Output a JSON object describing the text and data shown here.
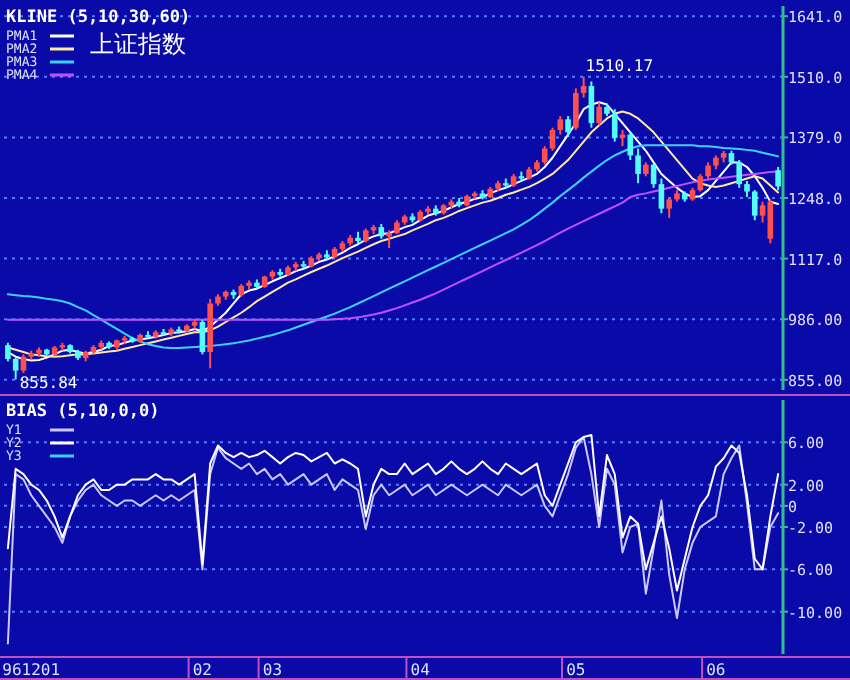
{
  "chart_data": [
    {
      "type": "candlestick",
      "title": "KLINE (5,10,30,60)",
      "subtitle": "上证指数",
      "categories": [
        null,
        null,
        null,
        "961201",
        null,
        null,
        null,
        null,
        null,
        null,
        null,
        null,
        null,
        null,
        null,
        null,
        null,
        null,
        null,
        null,
        null,
        null,
        null,
        null,
        null,
        "02",
        null,
        null,
        null,
        null,
        null,
        null,
        null,
        null,
        "03",
        null,
        null,
        null,
        null,
        null,
        null,
        null,
        null,
        null,
        null,
        null,
        null,
        null,
        null,
        null,
        null,
        null,
        null,
        "04",
        null,
        null,
        null,
        null,
        null,
        null,
        null,
        null,
        null,
        null,
        null,
        null,
        null,
        null,
        null,
        null,
        null,
        null,
        null,
        "05",
        null,
        null,
        null,
        null,
        null,
        null,
        null,
        null,
        null,
        null,
        null,
        null,
        null,
        null,
        null,
        null,
        null,
        "06",
        null,
        null,
        null,
        null,
        null,
        null,
        null,
        null
      ],
      "ohlc": [
        [
          930,
          935,
          895,
          900
        ],
        [
          900,
          903,
          855.84,
          875
        ],
        [
          875,
          910,
          870,
          905
        ],
        [
          905,
          918,
          900,
          912
        ],
        [
          912,
          925,
          905,
          920
        ],
        [
          920,
          922,
          908,
          910
        ],
        [
          910,
          928,
          906,
          925
        ],
        [
          925,
          935,
          918,
          930
        ],
        [
          930,
          932,
          912,
          915
        ],
        [
          915,
          920,
          898,
          902
        ],
        [
          902,
          918,
          895,
          915
        ],
        [
          915,
          930,
          910,
          926
        ],
        [
          926,
          940,
          920,
          935
        ],
        [
          935,
          938,
          922,
          925
        ],
        [
          925,
          942,
          920,
          940
        ],
        [
          940,
          950,
          932,
          945
        ],
        [
          945,
          948,
          935,
          938
        ],
        [
          938,
          955,
          935,
          952
        ],
        [
          952,
          960,
          945,
          948
        ],
        [
          948,
          962,
          944,
          958
        ],
        [
          958,
          965,
          950,
          955
        ],
        [
          955,
          968,
          950,
          964
        ],
        [
          964,
          970,
          955,
          960
        ],
        [
          960,
          975,
          958,
          972
        ],
        [
          972,
          985,
          965,
          980
        ],
        [
          980,
          984,
          910,
          915
        ],
        [
          915,
          1030,
          880,
          1020
        ],
        [
          1020,
          1040,
          1015,
          1035
        ],
        [
          1035,
          1048,
          1028,
          1045
        ],
        [
          1045,
          1050,
          1030,
          1038
        ],
        [
          1038,
          1062,
          1035,
          1058
        ],
        [
          1058,
          1070,
          1050,
          1065
        ],
        [
          1065,
          1072,
          1052,
          1056
        ],
        [
          1056,
          1080,
          1054,
          1078
        ],
        [
          1078,
          1092,
          1072,
          1088
        ],
        [
          1088,
          1095,
          1078,
          1082
        ],
        [
          1082,
          1102,
          1080,
          1098
        ],
        [
          1098,
          1110,
          1090,
          1105
        ],
        [
          1105,
          1112,
          1095,
          1100
        ],
        [
          1100,
          1122,
          1098,
          1118
        ],
        [
          1118,
          1130,
          1112,
          1126
        ],
        [
          1126,
          1135,
          1115,
          1120
        ],
        [
          1120,
          1142,
          1118,
          1138
        ],
        [
          1138,
          1155,
          1132,
          1150
        ],
        [
          1150,
          1168,
          1145,
          1162
        ],
        [
          1162,
          1175,
          1150,
          1155
        ],
        [
          1155,
          1182,
          1152,
          1178
        ],
        [
          1178,
          1190,
          1170,
          1185
        ],
        [
          1185,
          1192,
          1160,
          1165
        ],
        [
          1165,
          1178,
          1140,
          1172
        ],
        [
          1172,
          1200,
          1170,
          1195
        ],
        [
          1195,
          1212,
          1190,
          1208
        ],
        [
          1208,
          1215,
          1195,
          1200
        ],
        [
          1200,
          1222,
          1198,
          1218
        ],
        [
          1218,
          1230,
          1212,
          1225
        ],
        [
          1225,
          1232,
          1210,
          1215
        ],
        [
          1215,
          1235,
          1212,
          1232
        ],
        [
          1232,
          1245,
          1225,
          1240
        ],
        [
          1240,
          1248,
          1228,
          1232
        ],
        [
          1232,
          1255,
          1230,
          1252
        ],
        [
          1252,
          1262,
          1245,
          1258
        ],
        [
          1258,
          1265,
          1245,
          1250
        ],
        [
          1250,
          1272,
          1248,
          1268
        ],
        [
          1268,
          1285,
          1262,
          1280
        ],
        [
          1280,
          1290,
          1270,
          1275
        ],
        [
          1275,
          1300,
          1272,
          1295
        ],
        [
          1295,
          1305,
          1285,
          1290
        ],
        [
          1290,
          1315,
          1288,
          1310
        ],
        [
          1310,
          1330,
          1305,
          1325
        ],
        [
          1325,
          1360,
          1320,
          1355
        ],
        [
          1355,
          1400,
          1350,
          1395
        ],
        [
          1395,
          1425,
          1385,
          1418
        ],
        [
          1418,
          1425,
          1380,
          1390
        ],
        [
          1400,
          1485,
          1395,
          1475
        ],
        [
          1475,
          1510.17,
          1465,
          1490
        ],
        [
          1490,
          1500,
          1400,
          1410
        ],
        [
          1410,
          1455,
          1405,
          1445
        ],
        [
          1445,
          1452,
          1425,
          1430
        ],
        [
          1430,
          1440,
          1370,
          1378
        ],
        [
          1378,
          1395,
          1360,
          1385
        ],
        [
          1385,
          1390,
          1330,
          1340
        ],
        [
          1340,
          1355,
          1280,
          1300
        ],
        [
          1300,
          1325,
          1295,
          1320
        ],
        [
          1320,
          1322,
          1270,
          1278
        ],
        [
          1278,
          1290,
          1215,
          1225
        ],
        [
          1225,
          1250,
          1205,
          1245
        ],
        [
          1245,
          1265,
          1240,
          1258
        ],
        [
          1258,
          1262,
          1240,
          1245
        ],
        [
          1245,
          1270,
          1242,
          1265
        ],
        [
          1265,
          1300,
          1262,
          1295
        ],
        [
          1295,
          1325,
          1290,
          1318
        ],
        [
          1318,
          1340,
          1310,
          1335
        ],
        [
          1335,
          1350,
          1325,
          1345
        ],
        [
          1345,
          1350,
          1320,
          1325
        ],
        [
          1325,
          1330,
          1270,
          1278
        ],
        [
          1278,
          1285,
          1250,
          1262
        ],
        [
          1262,
          1265,
          1200,
          1210
        ],
        [
          1210,
          1240,
          1195,
          1232
        ],
        [
          1160,
          1245,
          1150,
          1240
        ],
        [
          1308,
          1315,
          1265,
          1273
        ]
      ],
      "colors": [
        "#54fcfc",
        "#54fcfc",
        "#ff5050",
        "#ff5050",
        "#ff5050",
        "#54fcfc",
        "#ff5050",
        "#ff5050",
        "#54fcfc",
        "#54fcfc",
        "#ff5050",
        "#ff5050",
        "#ff5050",
        "#54fcfc",
        "#ff5050",
        "#ff5050",
        "#54fcfc",
        "#ff5050",
        "#54fcfc",
        "#ff5050",
        "#54fcfc",
        "#ff5050",
        "#54fcfc",
        "#ff5050",
        "#ff5050",
        "#54fcfc",
        "#ff5050",
        "#ff5050",
        "#ff5050",
        "#54fcfc",
        "#ff5050",
        "#ff5050",
        "#54fcfc",
        "#ff5050",
        "#ff5050",
        "#54fcfc",
        "#ff5050",
        "#ff5050",
        "#54fcfc",
        "#ff5050",
        "#ff5050",
        "#54fcfc",
        "#ff5050",
        "#ff5050",
        "#ff5050",
        "#54fcfc",
        "#ff5050",
        "#ff5050",
        "#54fcfc",
        "#ff5050",
        "#ff5050",
        "#ff5050",
        "#54fcfc",
        "#ff5050",
        "#ff5050",
        "#54fcfc",
        "#ff5050",
        "#ff5050",
        "#54fcfc",
        "#ff5050",
        "#ff5050",
        "#54fcfc",
        "#ff5050",
        "#ff5050",
        "#54fcfc",
        "#ff5050",
        "#54fcfc",
        "#ff5050",
        "#ff5050",
        "#ff5050",
        "#ff5050",
        "#ff5050",
        "#54fcfc",
        "#ff5050",
        "#ff5050",
        "#54fcfc",
        "#ff5050",
        "#54fcfc",
        "#54fcfc",
        "#ff5050",
        "#54fcfc",
        "#54fcfc",
        "#ff5050",
        "#54fcfc",
        "#54fcfc",
        "#ff5050",
        "#ff5050",
        "#54fcfc",
        "#ff5050",
        "#ff5050",
        "#ff5050",
        "#ff5050",
        "#ff5050",
        "#54fcfc",
        "#54fcfc",
        "#54fcfc",
        "#54fcfc",
        "#ff5050",
        "#ff5050",
        "#54fcfc"
      ],
      "series": [
        {
          "name": "PMA1",
          "type": "line",
          "color": "#ffffff",
          "values": [
            915,
            905,
            900,
            897,
            898,
            903,
            910,
            918,
            920,
            915,
            912,
            915,
            920,
            928,
            930,
            935,
            940,
            942,
            945,
            948,
            952,
            956,
            958,
            960,
            965,
            960,
            970,
            985,
            1000,
            1020,
            1040,
            1048,
            1052,
            1060,
            1068,
            1075,
            1082,
            1090,
            1095,
            1102,
            1110,
            1115,
            1122,
            1130,
            1140,
            1148,
            1158,
            1165,
            1170,
            1172,
            1178,
            1185,
            1190,
            1200,
            1210,
            1215,
            1220,
            1228,
            1235,
            1240,
            1246,
            1250,
            1258,
            1265,
            1270,
            1278,
            1285,
            1292,
            1300,
            1315,
            1335,
            1360,
            1385,
            1410,
            1440,
            1450,
            1455,
            1450,
            1430,
            1410,
            1390,
            1370,
            1350,
            1325,
            1300,
            1285,
            1270,
            1258,
            1250,
            1252,
            1265,
            1285,
            1305,
            1325,
            1325,
            1315,
            1295,
            1270,
            1240,
            1235
          ]
        },
        {
          "name": "PMA2",
          "type": "line",
          "color": "#ffe8a0",
          "values": [
            925,
            920,
            915,
            910,
            908,
            906,
            905,
            906,
            908,
            910,
            910,
            912,
            914,
            916,
            918,
            922,
            926,
            930,
            934,
            938,
            942,
            946,
            950,
            954,
            958,
            958,
            962,
            970,
            980,
            990,
            1000,
            1012,
            1025,
            1035,
            1045,
            1055,
            1065,
            1072,
            1080,
            1088,
            1095,
            1102,
            1110,
            1118,
            1125,
            1132,
            1140,
            1148,
            1155,
            1160,
            1165,
            1170,
            1178,
            1185,
            1192,
            1200,
            1205,
            1212,
            1220,
            1226,
            1232,
            1238,
            1242,
            1248,
            1255,
            1260,
            1266,
            1272,
            1280,
            1290,
            1300,
            1315,
            1330,
            1350,
            1370,
            1390,
            1405,
            1420,
            1430,
            1435,
            1430,
            1420,
            1405,
            1390,
            1370,
            1350,
            1330,
            1310,
            1290,
            1280,
            1275,
            1272,
            1275,
            1280,
            1285,
            1290,
            1295,
            1290,
            1275,
            1260
          ]
        },
        {
          "name": "PMA3",
          "type": "line",
          "color": "#40d0ff",
          "values": [
            1040,
            1038,
            1036,
            1035,
            1033,
            1030,
            1028,
            1025,
            1020,
            1012,
            1005,
            995,
            985,
            975,
            965,
            955,
            945,
            938,
            932,
            928,
            925,
            924,
            924,
            925,
            926,
            927,
            928,
            930,
            932,
            934,
            937,
            940,
            944,
            948,
            952,
            957,
            962,
            968,
            974,
            980,
            986,
            992,
            998,
            1005,
            1012,
            1020,
            1028,
            1036,
            1044,
            1052,
            1060,
            1068,
            1076,
            1084,
            1092,
            1100,
            1108,
            1116,
            1124,
            1132,
            1140,
            1148,
            1156,
            1164,
            1172,
            1180,
            1190,
            1200,
            1212,
            1225,
            1238,
            1252,
            1265,
            1278,
            1292,
            1305,
            1318,
            1330,
            1340,
            1348,
            1355,
            1360,
            1362,
            1362,
            1362,
            1362,
            1362,
            1362,
            1362,
            1360,
            1360,
            1358,
            1356,
            1355,
            1354,
            1352,
            1350,
            1346,
            1342,
            1338
          ]
        },
        {
          "name": "PMA4",
          "type": "line",
          "color": "#c050ff",
          "values": [
            985,
            985,
            985,
            985,
            985,
            985,
            985,
            985,
            985,
            985,
            985,
            985,
            985,
            985,
            985,
            985,
            985,
            985,
            985,
            985,
            985,
            985,
            985,
            985,
            985,
            985,
            985,
            985,
            985,
            985,
            985,
            985,
            985,
            985,
            985,
            985,
            985,
            985,
            985,
            985,
            985,
            985,
            986,
            987,
            988,
            990,
            993,
            996,
            1000,
            1005,
            1010,
            1016,
            1022,
            1028,
            1035,
            1042,
            1050,
            1058,
            1066,
            1074,
            1082,
            1090,
            1098,
            1106,
            1114,
            1122,
            1130,
            1138,
            1146,
            1155,
            1164,
            1173,
            1182,
            1190,
            1198,
            1206,
            1214,
            1222,
            1230,
            1238,
            1250,
            1255,
            1258,
            1262,
            1266,
            1270,
            1274,
            1278,
            1282,
            1285,
            1288,
            1290,
            1292,
            1294,
            1296,
            1298,
            1300,
            1302,
            1304,
            1305
          ]
        }
      ],
      "ylim": [
        833,
        1663
      ],
      "yticks": [
        {
          "value": 1641,
          "label": "1641.0"
        },
        {
          "value": 1510,
          "label": "1510.0"
        },
        {
          "value": 1379,
          "label": "1379.0"
        },
        {
          "value": 1248,
          "label": "1248.0"
        },
        {
          "value": 1117,
          "label": "1117.0"
        },
        {
          "value": 986,
          "label": "986.00"
        },
        {
          "value": 855,
          "label": "855.00"
        }
      ],
      "annotations": [
        "1510.17",
        "855.84"
      ],
      "grid": "y",
      "legend": "top left",
      "tick_labels": "y"
    },
    {
      "type": "line",
      "title": "BIAS (5,10,0,0)",
      "categories": [
        null,
        null,
        null,
        "961201",
        null,
        null,
        null,
        null,
        null,
        null,
        null,
        null,
        null,
        null,
        null,
        null,
        null,
        null,
        null,
        null,
        null,
        null,
        null,
        null,
        null,
        "02",
        null,
        null,
        null,
        null,
        null,
        null,
        null,
        null,
        "03",
        null,
        null,
        null,
        null,
        null,
        null,
        null,
        null,
        null,
        null,
        null,
        null,
        null,
        null,
        null,
        null,
        null,
        null,
        "04",
        null,
        null,
        null,
        null,
        null,
        null,
        null,
        null,
        null,
        null,
        null,
        null,
        null,
        null,
        null,
        null,
        null,
        null,
        null,
        "05",
        null,
        null,
        null,
        null,
        null,
        null,
        null,
        null,
        null,
        null,
        null,
        null,
        null,
        null,
        null,
        null,
        null,
        "06",
        null,
        null,
        null,
        null,
        null,
        null,
        null,
        null
      ],
      "series": [
        {
          "name": "Y1",
          "color": "#c8c8ff",
          "values": [
            -13,
            3,
            2.5,
            1,
            0,
            -1,
            -2,
            -3.5,
            -1,
            0.5,
            1.5,
            2,
            1,
            0.5,
            0,
            0.5,
            0.5,
            0,
            0.5,
            1,
            0.5,
            1,
            0.5,
            1,
            1.5,
            -6,
            3,
            5.5,
            4.5,
            4,
            3.5,
            4,
            3,
            3.5,
            2.5,
            3,
            2,
            2.5,
            3,
            2,
            2.5,
            3,
            1.5,
            2.5,
            2,
            1.5,
            -2.2,
            1,
            2,
            1,
            1.5,
            2,
            1,
            1.5,
            2,
            1,
            1.5,
            2,
            1.5,
            1,
            1.5,
            2,
            1.5,
            1,
            2,
            1.5,
            1,
            1.5,
            2,
            0,
            -1,
            1,
            3,
            5.5,
            6.5,
            3,
            -2,
            3.5,
            2,
            -4.4,
            -2,
            -1.7,
            -8.3,
            -4,
            0.5,
            -6.5,
            -10.6,
            -6,
            -3.5,
            -2,
            -1.5,
            -1,
            3,
            4.5,
            5.7,
            0.2,
            -6,
            -6,
            -2,
            -0.7
          ]
        },
        {
          "name": "Y2",
          "color": "#ffffff",
          "values": [
            -4,
            3.5,
            3,
            2,
            1.5,
            0.5,
            -1,
            -3,
            -1,
            1,
            2,
            2.5,
            1.5,
            1.5,
            2,
            2,
            2.5,
            2.5,
            2.5,
            3,
            2.5,
            2.5,
            2,
            2.5,
            3,
            -5.5,
            4,
            5.7,
            5,
            4.6,
            5,
            4.6,
            4.8,
            5.2,
            4.6,
            4,
            4.6,
            5,
            4.8,
            4.2,
            4.6,
            5,
            4,
            4.4,
            4,
            3.5,
            -1,
            2,
            3.5,
            3,
            3,
            4,
            3,
            3.5,
            4,
            3,
            3.5,
            4.2,
            3.5,
            3,
            3.5,
            4.2,
            3.5,
            3,
            4,
            3.5,
            3,
            3.5,
            4,
            1,
            0,
            2,
            4,
            6,
            6.5,
            6.7,
            -1,
            4.8,
            3,
            -3,
            -1,
            -1.7,
            -6,
            -3.5,
            -1,
            -4,
            -8,
            -5,
            -2,
            0,
            1,
            3.7,
            4.5,
            5.7,
            5,
            1,
            -5,
            -6,
            -1,
            3
          ]
        },
        {
          "name": "Y3",
          "color": "#40d0ff",
          "values": [
            null,
            null,
            null,
            null,
            null,
            null,
            null,
            null,
            null,
            null,
            null,
            null,
            null,
            null,
            null,
            null,
            null,
            null,
            null,
            null,
            null,
            null,
            null,
            null,
            null,
            null,
            null,
            null,
            null,
            null,
            null,
            null,
            null,
            null,
            null,
            null,
            null,
            null,
            null,
            null,
            null,
            null,
            null,
            null,
            null,
            null,
            null,
            null,
            null,
            null,
            null,
            null,
            null,
            null,
            null,
            null,
            null,
            null,
            null,
            null,
            null,
            null,
            null,
            null,
            null,
            null,
            null,
            null,
            null,
            null,
            null,
            null,
            null,
            null,
            null,
            null,
            null,
            null,
            null,
            null,
            null,
            null,
            null,
            null,
            null,
            null,
            null,
            null,
            null,
            null,
            null,
            null,
            null,
            null,
            null,
            null,
            null,
            null,
            null,
            null
          ]
        }
      ],
      "ylim": [
        -14,
        10
      ],
      "yticks": [
        {
          "value": 6,
          "label": "6.00"
        },
        {
          "value": 2,
          "label": "2.00"
        },
        0,
        {
          "value": -2,
          "label": "-2.00"
        },
        {
          "value": -6,
          "label": "-6.00"
        },
        {
          "value": -10,
          "label": "-10.00"
        }
      ],
      "grid": "y",
      "legend": "top left"
    }
  ]
}
